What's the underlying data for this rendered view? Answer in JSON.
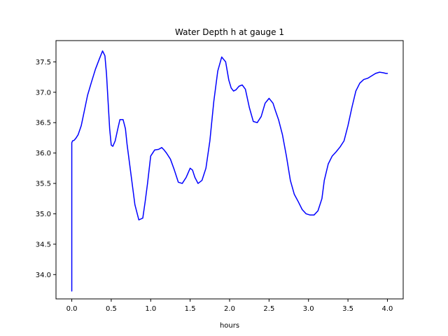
{
  "chart_data": {
    "type": "line",
    "title": "Water Depth h at gauge 1",
    "xlabel": "hours",
    "ylabel": "",
    "xlim": [
      -0.2,
      4.2
    ],
    "ylim": [
      33.6,
      37.85
    ],
    "xticks": [
      0.0,
      0.5,
      1.0,
      1.5,
      2.0,
      2.5,
      3.0,
      3.5,
      4.0
    ],
    "xtick_labels": [
      "0.0",
      "0.5",
      "1.0",
      "1.5",
      "2.0",
      "2.5",
      "3.0",
      "3.5",
      "4.0"
    ],
    "yticks": [
      34.0,
      34.5,
      35.0,
      35.5,
      36.0,
      36.5,
      37.0,
      37.5
    ],
    "ytick_labels": [
      "34.0",
      "34.5",
      "35.0",
      "35.5",
      "36.0",
      "36.5",
      "37.0",
      "37.5"
    ],
    "grid": false,
    "series": [
      {
        "color": "#0000ff",
        "x": [
          0.0,
          0.0,
          0.01,
          0.03,
          0.05,
          0.08,
          0.12,
          0.16,
          0.2,
          0.25,
          0.3,
          0.35,
          0.39,
          0.42,
          0.44,
          0.46,
          0.48,
          0.5,
          0.52,
          0.55,
          0.58,
          0.61,
          0.65,
          0.68,
          0.7,
          0.73,
          0.76,
          0.8,
          0.85,
          0.9,
          0.93,
          0.96,
          1.0,
          1.05,
          1.1,
          1.14,
          1.17,
          1.2,
          1.25,
          1.3,
          1.35,
          1.4,
          1.45,
          1.5,
          1.53,
          1.56,
          1.6,
          1.65,
          1.7,
          1.75,
          1.8,
          1.85,
          1.9,
          1.95,
          1.99,
          2.02,
          2.05,
          2.08,
          2.12,
          2.16,
          2.2,
          2.25,
          2.3,
          2.35,
          2.4,
          2.45,
          2.5,
          2.55,
          2.58,
          2.62,
          2.67,
          2.72,
          2.77,
          2.82,
          2.87,
          2.92,
          2.97,
          3.02,
          3.07,
          3.12,
          3.17,
          3.2,
          3.25,
          3.3,
          3.35,
          3.4,
          3.45,
          3.5,
          3.55,
          3.6,
          3.65,
          3.7,
          3.75,
          3.8,
          3.85,
          3.9,
          3.95,
          3.98,
          4.0
        ],
        "y": [
          33.73,
          36.17,
          36.2,
          36.21,
          36.24,
          36.3,
          36.45,
          36.7,
          36.95,
          37.17,
          37.38,
          37.55,
          37.68,
          37.6,
          37.3,
          36.85,
          36.4,
          36.13,
          36.11,
          36.2,
          36.38,
          36.55,
          36.55,
          36.4,
          36.15,
          35.85,
          35.55,
          35.15,
          34.9,
          34.93,
          35.2,
          35.5,
          35.95,
          36.05,
          36.06,
          36.09,
          36.05,
          36.0,
          35.9,
          35.72,
          35.52,
          35.5,
          35.6,
          35.75,
          35.72,
          35.6,
          35.5,
          35.55,
          35.75,
          36.2,
          36.85,
          37.35,
          37.58,
          37.5,
          37.2,
          37.07,
          37.02,
          37.04,
          37.1,
          37.12,
          37.05,
          36.75,
          36.52,
          36.5,
          36.6,
          36.82,
          36.9,
          36.82,
          36.7,
          36.55,
          36.3,
          35.95,
          35.55,
          35.32,
          35.2,
          35.07,
          35.0,
          34.98,
          34.98,
          35.05,
          35.25,
          35.55,
          35.82,
          35.95,
          36.02,
          36.1,
          36.2,
          36.45,
          36.75,
          37.02,
          37.15,
          37.21,
          37.23,
          37.27,
          37.31,
          37.33,
          37.32,
          37.31,
          37.31
        ]
      }
    ]
  }
}
